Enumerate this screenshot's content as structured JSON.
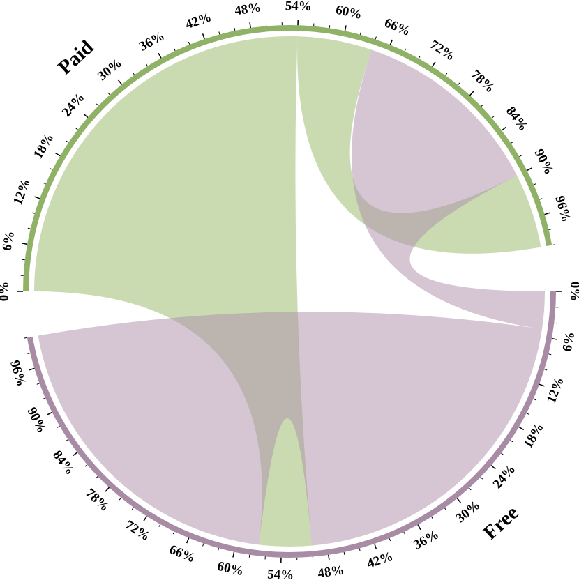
{
  "chart_data": {
    "type": "chord",
    "groups": [
      {
        "name": "Paid",
        "color": "#8fb266",
        "ribbon_color": "#95b865"
      },
      {
        "name": "Free",
        "color": "#a88ba4",
        "ribbon_color": "#ae8eaa"
      }
    ],
    "ticks": [
      {
        "value": 0,
        "label": "0%"
      },
      {
        "value": 6,
        "label": "6%"
      },
      {
        "value": 12,
        "label": "12%"
      },
      {
        "value": 18,
        "label": "18%"
      },
      {
        "value": 24,
        "label": "24%"
      },
      {
        "value": 30,
        "label": "30%"
      },
      {
        "value": 36,
        "label": "36%"
      },
      {
        "value": 42,
        "label": "42%"
      },
      {
        "value": 48,
        "label": "48%"
      },
      {
        "value": 54,
        "label": "54%"
      },
      {
        "value": 60,
        "label": "60%"
      },
      {
        "value": 66,
        "label": "66%"
      },
      {
        "value": 72,
        "label": "72%"
      },
      {
        "value": 78,
        "label": "78%"
      },
      {
        "value": 84,
        "label": "84%"
      },
      {
        "value": 90,
        "label": "90%"
      },
      {
        "value": 96,
        "label": "96%"
      }
    ],
    "ribbons": [
      {
        "source": 0,
        "source_range": [
          0,
          54
        ],
        "target": 1,
        "target_range": [
          50,
          57
        ]
      },
      {
        "source": 0,
        "source_range": [
          54,
          64
        ],
        "target": 0,
        "target_range": [
          90,
          100
        ]
      },
      {
        "source": 1,
        "source_range": [
          0,
          5
        ],
        "target": 0,
        "target_range": [
          64,
          90
        ]
      },
      {
        "source": 1,
        "source_range": [
          5,
          50
        ],
        "target": 1,
        "target_range": [
          57,
          100
        ]
      }
    ]
  }
}
